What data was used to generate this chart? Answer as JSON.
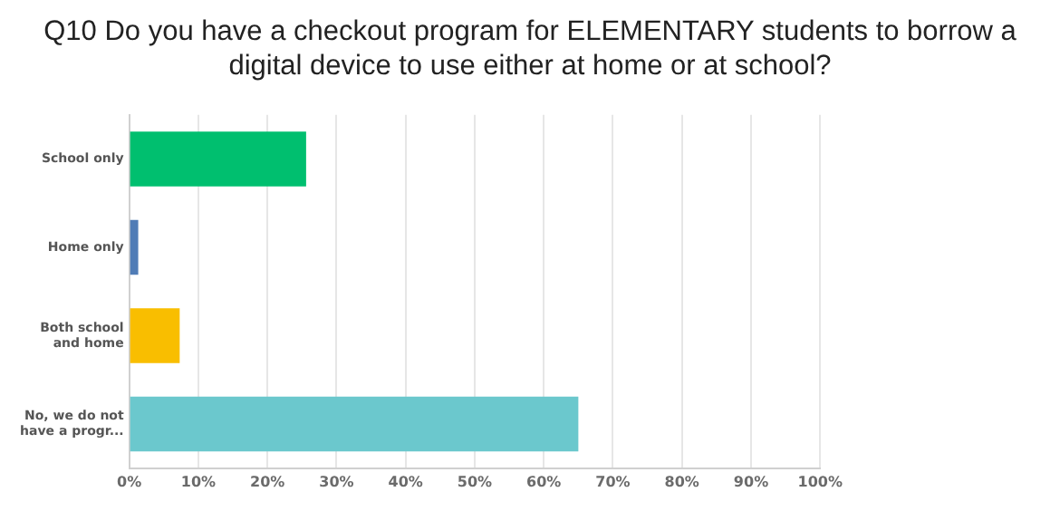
{
  "chart_data": {
    "type": "bar",
    "orientation": "horizontal",
    "title": "Q10 Do you have a checkout program for ELEMENTARY students to borrow a digital device to use either at home or at school?",
    "categories": [
      "School only",
      "Home only",
      "Both school\nand home",
      "No, we do not\nhave a progr..."
    ],
    "values": [
      25.6,
      1.3,
      7.3,
      65
    ],
    "colors": [
      "#00bf6f",
      "#507cb6",
      "#f9be00",
      "#6bc8cd"
    ],
    "xlim": [
      0,
      100
    ],
    "xticks": [
      {
        "value": 0,
        "label": "0%"
      },
      {
        "value": 10,
        "label": "10%"
      },
      {
        "value": 20,
        "label": "20%"
      },
      {
        "value": 30,
        "label": "30%"
      },
      {
        "value": 40,
        "label": "40%"
      },
      {
        "value": 50,
        "label": "50%"
      },
      {
        "value": 60,
        "label": "60%"
      },
      {
        "value": 70,
        "label": "70%"
      },
      {
        "value": 80,
        "label": "80%"
      },
      {
        "value": 90,
        "label": "90%"
      },
      {
        "value": 100,
        "label": "100%"
      }
    ],
    "grid": "x",
    "legend": false
  }
}
